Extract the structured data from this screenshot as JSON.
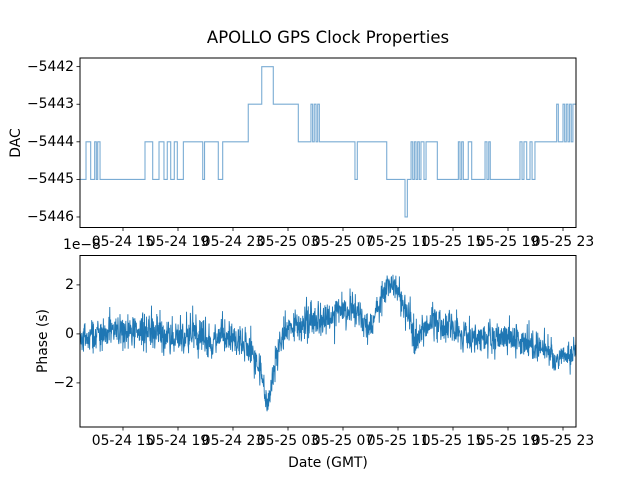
{
  "figure": {
    "background": "#ffffff",
    "border_color": "#000000",
    "text_color": "#000000"
  },
  "chart_data": [
    {
      "type": "line",
      "subtype": "step-post",
      "title": "APOLLO GPS Clock Properties",
      "ylabel": "DAC",
      "xlabel": "",
      "line_color": "#7aacd4",
      "x_unit": "hours since 05-24 00:00 GMT",
      "xlim": [
        11.873,
        47.945
      ],
      "ylim": [
        -5446.28,
        -5441.77
      ],
      "yticks": [
        -5442,
        -5443,
        -5444,
        -5445,
        -5446
      ],
      "ytick_labels": [
        "−5442",
        "−5443",
        "−5444",
        "−5445",
        "−5446"
      ],
      "xticks": [
        15,
        19,
        23,
        27,
        31,
        35,
        39,
        43,
        47
      ],
      "xtick_labels": [
        "05-24 15",
        "05-24 19",
        "05-24 23",
        "05-25 03",
        "05-25 07",
        "05-25 11",
        "05-25 15",
        "05-25 19",
        "05-25 23"
      ],
      "grid": false,
      "steps": [
        [
          11.873,
          -5445
        ],
        [
          12.31,
          -5444
        ],
        [
          12.65,
          -5445
        ],
        [
          12.94,
          -5444
        ],
        [
          13.06,
          -5445
        ],
        [
          13.16,
          -5444
        ],
        [
          13.33,
          -5445
        ],
        [
          16.6,
          -5444
        ],
        [
          17.16,
          -5445
        ],
        [
          17.62,
          -5444
        ],
        [
          17.98,
          -5445
        ],
        [
          18.22,
          -5444
        ],
        [
          18.47,
          -5445
        ],
        [
          18.73,
          -5444
        ],
        [
          18.95,
          -5445
        ],
        [
          19.39,
          -5444
        ],
        [
          20.8,
          -5445
        ],
        [
          20.93,
          -5444
        ],
        [
          21.93,
          -5445
        ],
        [
          22.25,
          -5444
        ],
        [
          24.11,
          -5443
        ],
        [
          25.09,
          -5442
        ],
        [
          25.93,
          -5443
        ],
        [
          27.75,
          -5444
        ],
        [
          28.67,
          -5443
        ],
        [
          28.79,
          -5444
        ],
        [
          28.91,
          -5443
        ],
        [
          29.04,
          -5444
        ],
        [
          29.16,
          -5443
        ],
        [
          29.28,
          -5444
        ],
        [
          31.87,
          -5445
        ],
        [
          32.04,
          -5444
        ],
        [
          34.18,
          -5445
        ],
        [
          35.51,
          -5446
        ],
        [
          35.68,
          -5445
        ],
        [
          35.95,
          -5444
        ],
        [
          36.07,
          -5445
        ],
        [
          36.19,
          -5444
        ],
        [
          36.31,
          -5445
        ],
        [
          36.43,
          -5444
        ],
        [
          36.55,
          -5445
        ],
        [
          36.67,
          -5444
        ],
        [
          36.89,
          -5445
        ],
        [
          37.04,
          -5444
        ],
        [
          37.86,
          -5445
        ],
        [
          39.39,
          -5444
        ],
        [
          39.51,
          -5445
        ],
        [
          39.63,
          -5444
        ],
        [
          39.75,
          -5445
        ],
        [
          40.11,
          -5444
        ],
        [
          40.36,
          -5445
        ],
        [
          41.33,
          -5444
        ],
        [
          41.47,
          -5445
        ],
        [
          41.6,
          -5444
        ],
        [
          41.71,
          -5445
        ],
        [
          43.87,
          -5444
        ],
        [
          44.02,
          -5445
        ],
        [
          44.16,
          -5444
        ],
        [
          44.36,
          -5445
        ],
        [
          44.6,
          -5444
        ],
        [
          44.75,
          -5445
        ],
        [
          44.96,
          -5444
        ],
        [
          46.54,
          -5443
        ],
        [
          46.66,
          -5444
        ],
        [
          47.0,
          -5443
        ],
        [
          47.12,
          -5444
        ],
        [
          47.24,
          -5443
        ],
        [
          47.36,
          -5444
        ],
        [
          47.48,
          -5443
        ],
        [
          47.6,
          -5444
        ],
        [
          47.72,
          -5443
        ],
        [
          47.945,
          -5443
        ]
      ]
    },
    {
      "type": "line",
      "subtype": "noisy",
      "title": "",
      "ylabel": "Phase (s)",
      "xlabel": "Date (GMT)",
      "offset_text": "1e−8",
      "line_color": "#1f77b4",
      "x_unit": "hours since 05-24 00:00 GMT",
      "y_unit": "1e-8 s",
      "xlim": [
        11.873,
        47.945
      ],
      "ylim": [
        -3.8,
        3.2
      ],
      "yticks": [
        2,
        0,
        -2
      ],
      "ytick_labels": [
        "2",
        "0",
        "−2"
      ],
      "xticks": [
        15,
        19,
        23,
        27,
        31,
        35,
        39,
        43,
        47
      ],
      "xtick_labels": [
        "05-24 15",
        "05-24 19",
        "05-24 23",
        "05-25 03",
        "05-25 07",
        "05-25 11",
        "05-25 15",
        "05-25 19",
        "05-25 23"
      ],
      "grid": false,
      "noise_seed": 42,
      "n_points": 1700,
      "envelope": [
        [
          11.873,
          -0.15,
          0.5
        ],
        [
          13.3,
          -0.05,
          0.5
        ],
        [
          14.8,
          0.15,
          0.55
        ],
        [
          16.2,
          0.0,
          0.5
        ],
        [
          16.9,
          0.3,
          0.6
        ],
        [
          18.1,
          -0.1,
          0.6
        ],
        [
          19.1,
          -0.15,
          0.5
        ],
        [
          20.2,
          0.1,
          0.6
        ],
        [
          21.3,
          -0.35,
          0.55
        ],
        [
          22.4,
          0.0,
          0.5
        ],
        [
          23.5,
          -0.4,
          0.55
        ],
        [
          24.6,
          -0.9,
          0.6
        ],
        [
          25.2,
          -2.0,
          0.55
        ],
        [
          25.5,
          -3.0,
          0.35
        ],
        [
          25.9,
          -1.8,
          0.5
        ],
        [
          26.4,
          -0.3,
          0.5
        ],
        [
          27.5,
          0.4,
          0.55
        ],
        [
          28.6,
          0.6,
          0.6
        ],
        [
          29.7,
          0.5,
          0.5
        ],
        [
          30.8,
          1.0,
          0.55
        ],
        [
          31.7,
          1.1,
          0.5
        ],
        [
          32.5,
          0.4,
          0.45
        ],
        [
          33.0,
          0.3,
          0.5
        ],
        [
          34.1,
          1.8,
          0.5
        ],
        [
          34.4,
          2.2,
          0.4
        ],
        [
          35.1,
          1.6,
          0.5
        ],
        [
          35.7,
          0.9,
          0.55
        ],
        [
          36.2,
          -0.3,
          0.6
        ],
        [
          36.7,
          0.2,
          0.5
        ],
        [
          37.7,
          0.5,
          0.55
        ],
        [
          38.4,
          0.3,
          0.5
        ],
        [
          39.1,
          0.1,
          0.5
        ],
        [
          39.9,
          0.0,
          0.55
        ],
        [
          41.0,
          -0.1,
          0.5
        ],
        [
          42.1,
          -0.2,
          0.5
        ],
        [
          43.1,
          -0.1,
          0.5
        ],
        [
          43.9,
          -0.3,
          0.5
        ],
        [
          44.6,
          -0.4,
          0.5
        ],
        [
          45.3,
          -0.6,
          0.5
        ],
        [
          46.1,
          -0.8,
          0.5
        ],
        [
          46.8,
          -1.0,
          0.45
        ],
        [
          47.5,
          -0.8,
          0.45
        ],
        [
          47.945,
          -0.6,
          0.4
        ]
      ]
    }
  ]
}
